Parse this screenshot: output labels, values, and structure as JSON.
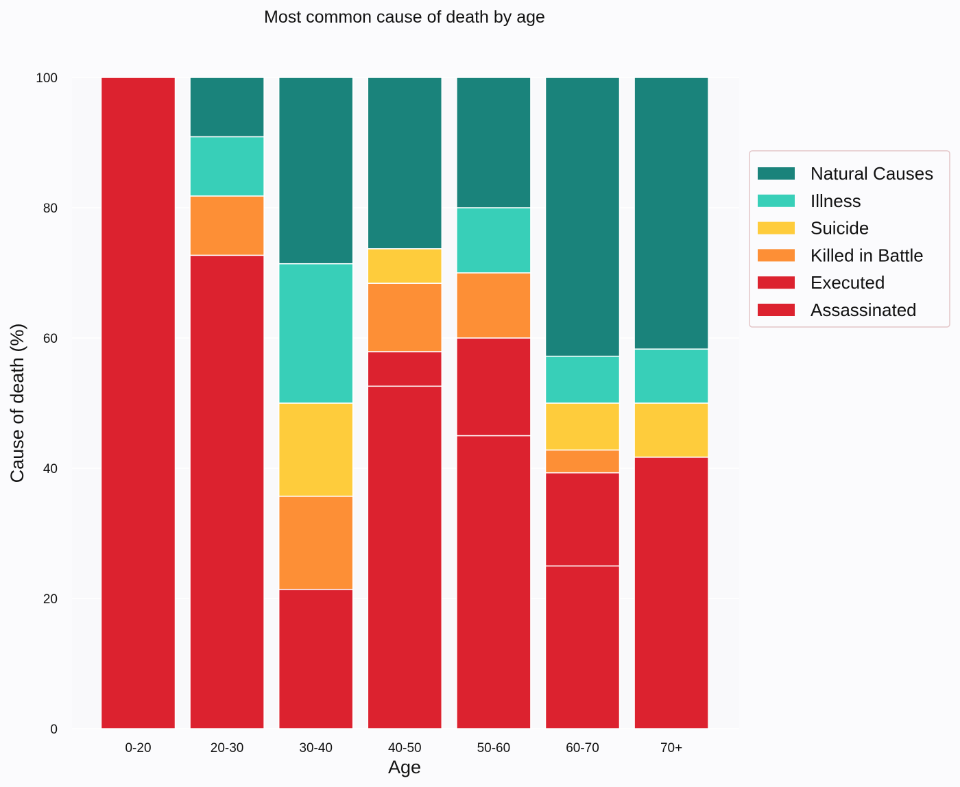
{
  "chart_data": {
    "type": "bar",
    "stacked": true,
    "title": "Most common cause of death by age",
    "xlabel": "Age",
    "ylabel": "Cause of death (%)",
    "ylim": [
      0,
      100
    ],
    "yticks": [
      0,
      20,
      40,
      60,
      80,
      100
    ],
    "grid": true,
    "legend_position": "right",
    "categories": [
      "0-20",
      "20-30",
      "30-40",
      "40-50",
      "50-60",
      "60-70",
      "70+"
    ],
    "series": [
      {
        "name": "Assassinated",
        "color": "#dc222f",
        "values": [
          100,
          72.7,
          0,
          52.6,
          45,
          25,
          0
        ]
      },
      {
        "name": "Executed",
        "color": "#dc222f",
        "values": [
          0,
          0,
          21.4,
          5.3,
          15,
          14.3,
          41.7
        ]
      },
      {
        "name": "Killed in Battle",
        "color": "#fd8f36",
        "values": [
          0,
          9.1,
          14.3,
          10.5,
          10,
          3.5,
          0
        ]
      },
      {
        "name": "Suicide",
        "color": "#fecc3c",
        "values": [
          0,
          0,
          14.3,
          5.3,
          0,
          7.2,
          8.3
        ]
      },
      {
        "name": "Illness",
        "color": "#38cfb8",
        "values": [
          0,
          9.1,
          21.4,
          0,
          10,
          7.2,
          8.3
        ]
      },
      {
        "name": "Natural Causes",
        "color": "#1a837b",
        "values": [
          0,
          9.1,
          28.6,
          26.3,
          20,
          42.8,
          41.7
        ]
      }
    ],
    "legend_order": [
      "Natural Causes",
      "Illness",
      "Suicide",
      "Killed in Battle",
      "Executed",
      "Assassinated"
    ]
  }
}
